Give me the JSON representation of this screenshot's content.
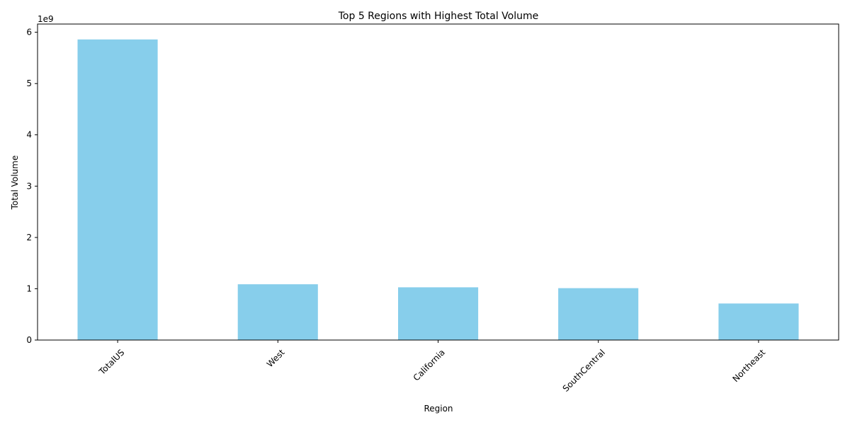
{
  "chart_data": {
    "type": "bar",
    "title": "Top 5 Regions with Highest Total Volume",
    "xlabel": "Region",
    "ylabel": "Total Volume",
    "y_offset_label": "1e9",
    "categories": [
      "TotalUS",
      "West",
      "California",
      "SouthCentral",
      "Northeast"
    ],
    "values": [
      5860000000,
      1087000000,
      1028000000,
      1012000000,
      713000000
    ],
    "ylim": [
      0,
      6160000000
    ],
    "yticks": [
      0,
      1000000000,
      2000000000,
      3000000000,
      4000000000,
      5000000000,
      6000000000
    ],
    "ytick_labels": [
      "0",
      "1",
      "2",
      "3",
      "4",
      "5",
      "6"
    ],
    "xtick_rotation": 45,
    "bar_color": "#87ceeb",
    "grid": false,
    "legend": false
  }
}
